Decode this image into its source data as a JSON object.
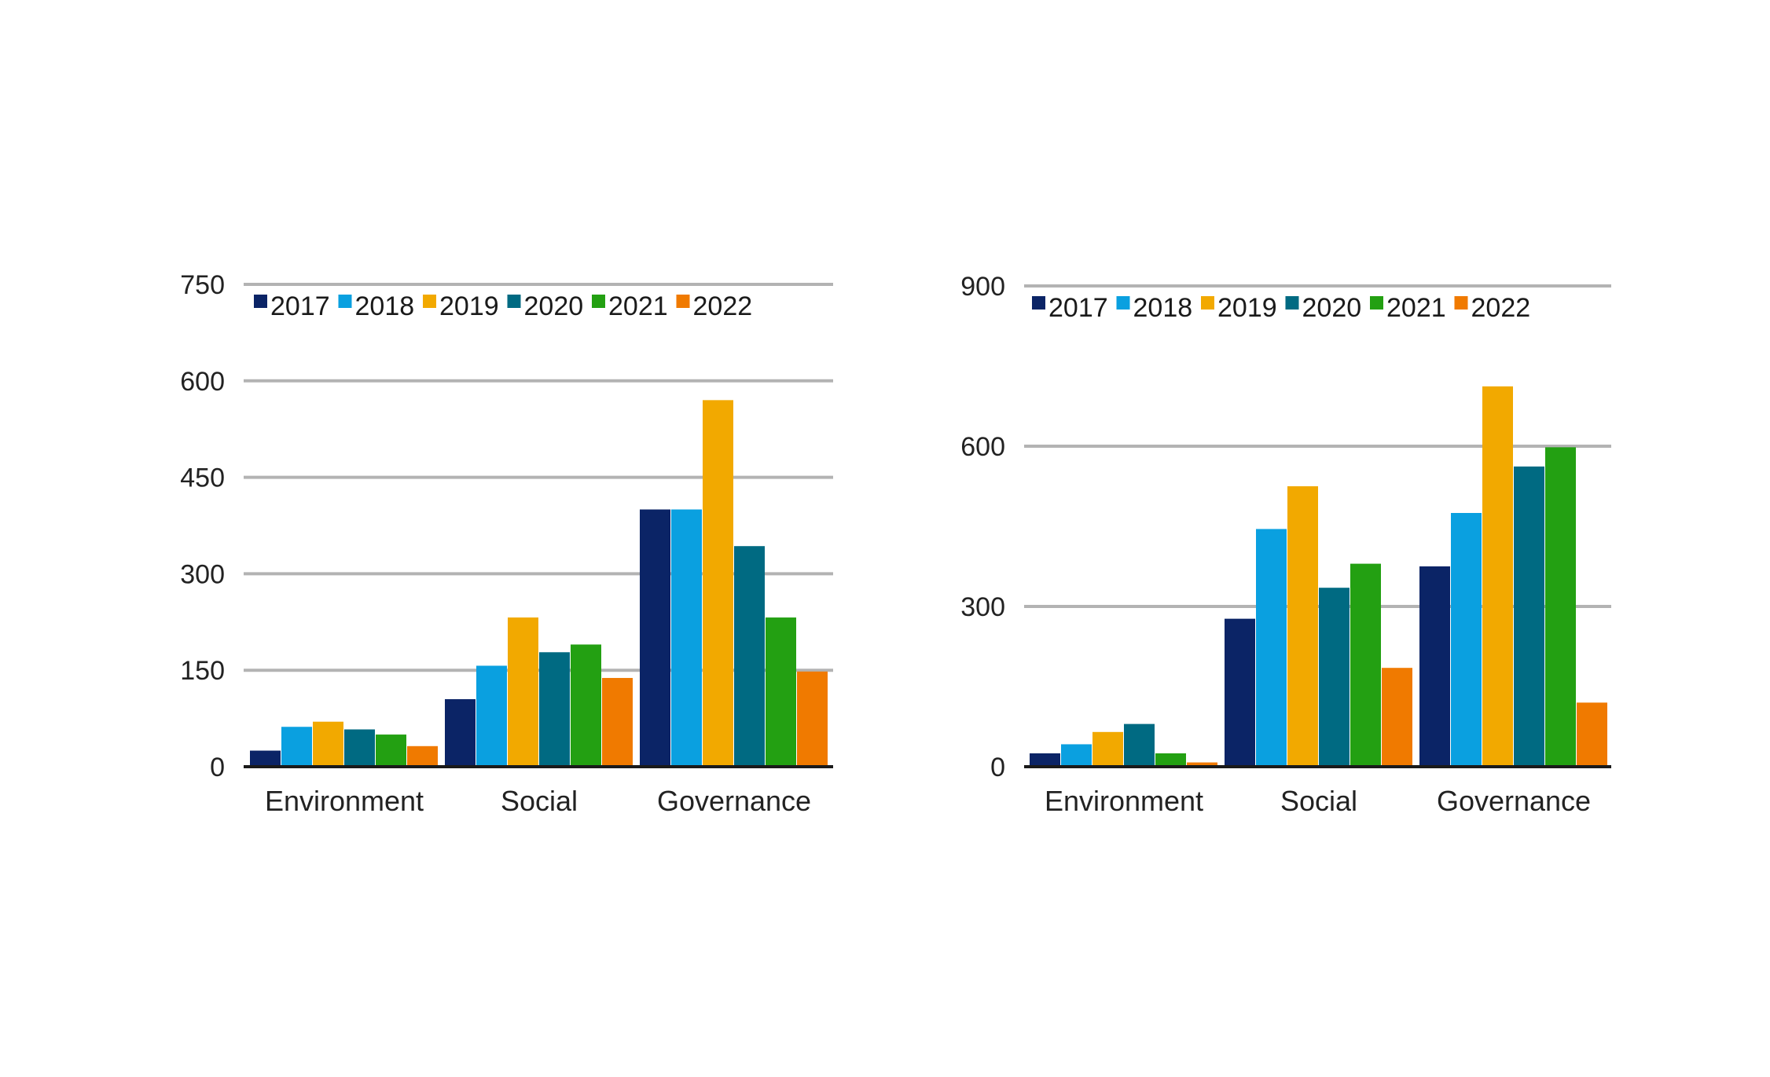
{
  "colors": {
    "2017": "#0b2466",
    "2018": "#0aa0e0",
    "2019": "#f2a900",
    "2020": "#006a82",
    "2021": "#23a012",
    "2022": "#f07a00",
    "grid": "#b3b3b3",
    "axis": "#1a1a1a"
  },
  "chart_data": [
    {
      "type": "bar",
      "title": "",
      "xlabel": "",
      "ylabel": "",
      "categories": [
        "Environment",
        "Social",
        "Governance"
      ],
      "yticks": [
        "0",
        "150",
        "300",
        "450",
        "600",
        "750"
      ],
      "ylim": [
        0,
        750
      ],
      "grid": true,
      "legend": "top",
      "series": [
        {
          "name": "2017",
          "values": [
            25,
            105,
            400
          ]
        },
        {
          "name": "2018",
          "values": [
            62,
            157,
            400
          ]
        },
        {
          "name": "2019",
          "values": [
            70,
            232,
            570
          ]
        },
        {
          "name": "2020",
          "values": [
            58,
            178,
            343
          ]
        },
        {
          "name": "2021",
          "values": [
            50,
            190,
            232
          ]
        },
        {
          "name": "2022",
          "values": [
            32,
            138,
            148
          ]
        }
      ]
    },
    {
      "type": "bar",
      "title": "",
      "xlabel": "",
      "ylabel": "",
      "categories": [
        "Environment",
        "Social",
        "Governance"
      ],
      "yticks": [
        "0",
        "300",
        "600",
        "900"
      ],
      "ylim": [
        0,
        900
      ],
      "grid": true,
      "legend": "top",
      "series": [
        {
          "name": "2017",
          "values": [
            25,
            277,
            375
          ]
        },
        {
          "name": "2018",
          "values": [
            42,
            445,
            475
          ]
        },
        {
          "name": "2019",
          "values": [
            65,
            525,
            712
          ]
        },
        {
          "name": "2020",
          "values": [
            80,
            335,
            562
          ]
        },
        {
          "name": "2021",
          "values": [
            25,
            380,
            598
          ]
        },
        {
          "name": "2022",
          "values": [
            8,
            185,
            120
          ]
        }
      ]
    }
  ]
}
